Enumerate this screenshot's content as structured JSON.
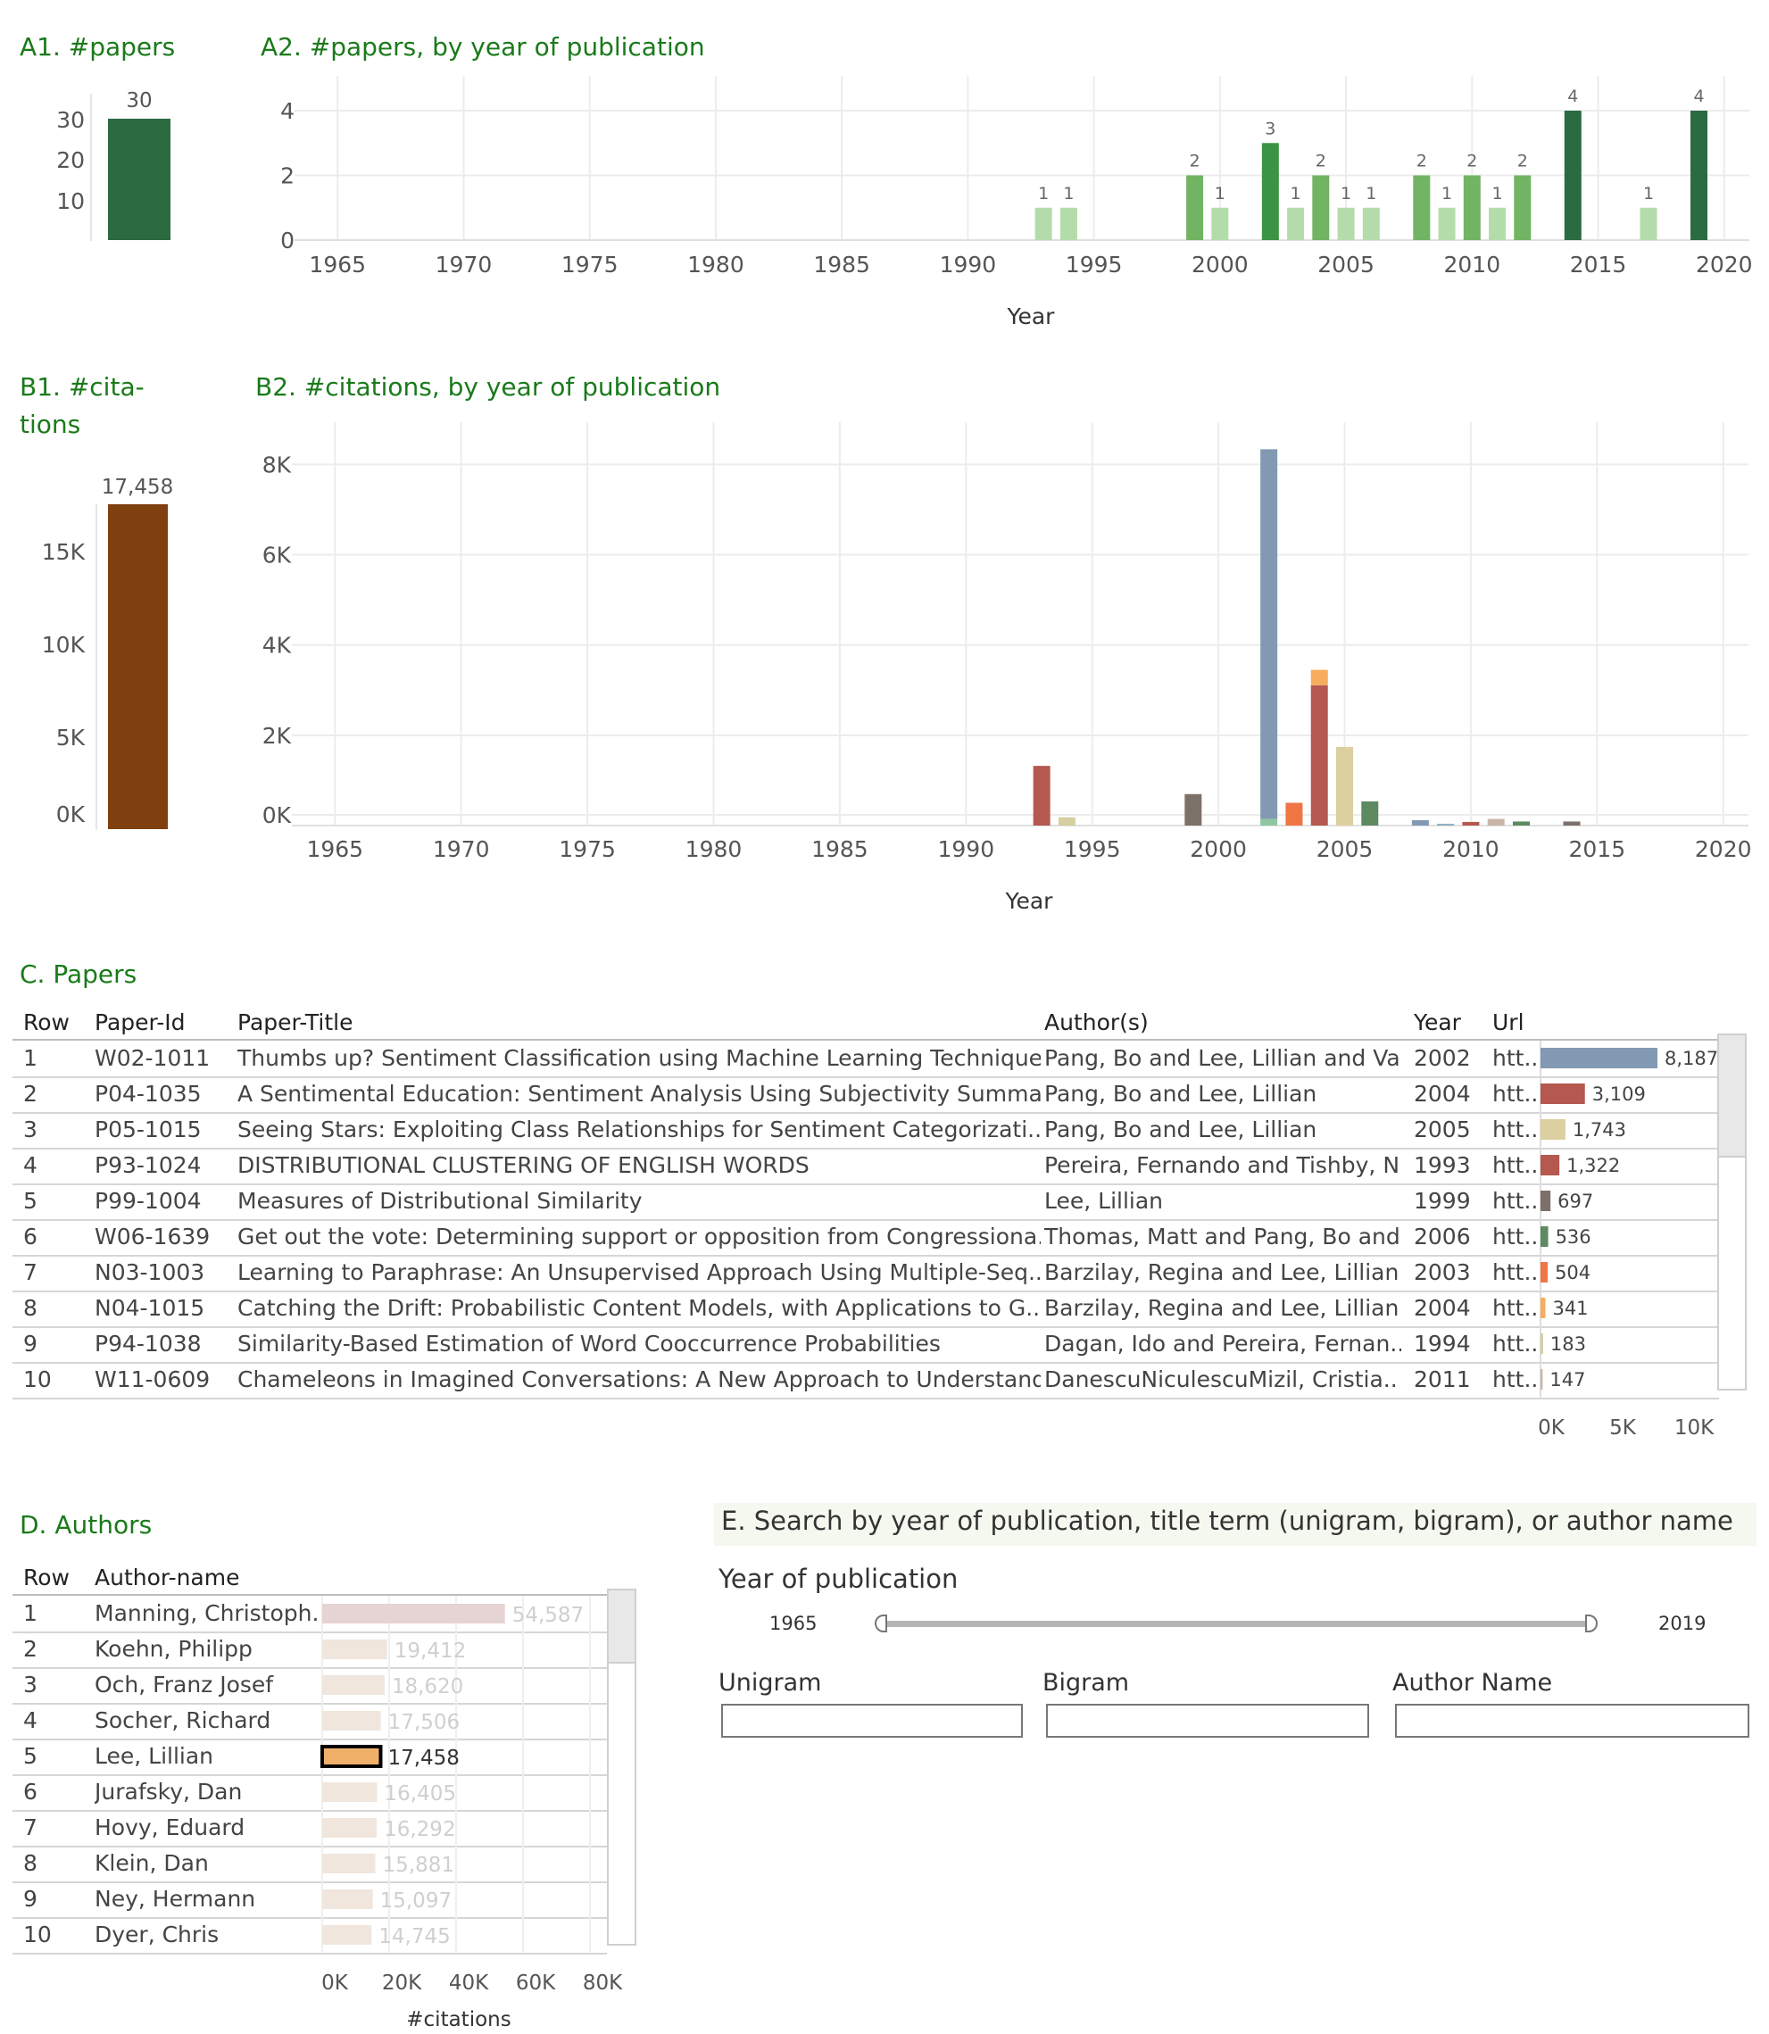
{
  "panels": {
    "a1_title": "A1. #papers",
    "a2_title": "A2. #papers, by year of publication",
    "b1_title_line1": "B1. #cita-",
    "b1_title_line2": "tions",
    "b2_title": "B2. #citations, by year of publication",
    "c_title": "C. Papers",
    "d_title": "D. Authors",
    "e_title": "E. Search by year of publication, title term (unigram, bigram), or  author name"
  },
  "colors": {
    "accent_title": "#1a7a1a",
    "a1_bar": "#2a6b41",
    "b1_bar": "#7f3f0f",
    "highlight_author": "#f0b06a"
  },
  "chart_data": [
    {
      "id": "A1",
      "type": "bar",
      "title": "A1. #papers",
      "categories": [
        ""
      ],
      "values": [
        30
      ],
      "data_labels": [
        "30"
      ],
      "y_ticks": [
        "10",
        "20",
        "30"
      ],
      "ylim": [
        0,
        36
      ],
      "grid": false
    },
    {
      "id": "A2",
      "type": "bar",
      "title": "A2. #papers, by year of publication",
      "xlabel": "Year",
      "x_ticks": [
        "1965",
        "1970",
        "1975",
        "1980",
        "1985",
        "1990",
        "1995",
        "2000",
        "2005",
        "2010",
        "2015",
        "2020"
      ],
      "x_tick_values": [
        1965,
        1970,
        1975,
        1980,
        1985,
        1990,
        1995,
        2000,
        2005,
        2010,
        2015,
        2020
      ],
      "y_ticks": [
        "0",
        "2",
        "4"
      ],
      "xlim": [
        1964,
        2021
      ],
      "ylim": [
        0,
        4.8
      ],
      "grid": true,
      "x": [
        1993,
        1994,
        1999,
        2000,
        2002,
        2003,
        2004,
        2005,
        2006,
        2008,
        2009,
        2010,
        2011,
        2012,
        2014,
        2017,
        2019
      ],
      "values": [
        1,
        1,
        2,
        1,
        3,
        1,
        2,
        1,
        1,
        2,
        1,
        2,
        1,
        2,
        4,
        1,
        4
      ]
    },
    {
      "id": "B1",
      "type": "bar",
      "title": "B1. #citations",
      "categories": [
        ""
      ],
      "values": [
        17458
      ],
      "data_labels": [
        "17,458"
      ],
      "y_ticks": [
        "0K",
        "5K",
        "10K",
        "15K"
      ],
      "y_tick_values": [
        0,
        5000,
        10000,
        15000
      ],
      "ylim": [
        0,
        19000
      ],
      "grid": false
    },
    {
      "id": "B2",
      "type": "bar",
      "title": "B2. #citations, by year of publication",
      "xlabel": "Year",
      "x_ticks": [
        "1965",
        "1970",
        "1975",
        "1980",
        "1985",
        "1990",
        "1995",
        "2000",
        "2005",
        "2010",
        "2015",
        "2020"
      ],
      "x_tick_values": [
        1965,
        1970,
        1975,
        1980,
        1985,
        1990,
        1995,
        2000,
        2005,
        2010,
        2015,
        2020
      ],
      "y_ticks": [
        "0K",
        "2K",
        "4K",
        "6K",
        "8K"
      ],
      "y_tick_values": [
        0,
        2000,
        4000,
        6000,
        8000
      ],
      "xlim": [
        1964,
        2021
      ],
      "ylim": [
        0,
        8700
      ],
      "grid": true,
      "stacked": true,
      "segments": [
        {
          "x": 1993,
          "value": 1322,
          "color": "#b5584f"
        },
        {
          "x": 1994,
          "value": 183,
          "color": "#d6cfa0"
        },
        {
          "x": 1999,
          "value": 697,
          "color": "#7d7068"
        },
        {
          "x": 2002,
          "value": 150,
          "color": "#8ec7a0"
        },
        {
          "x": 2002,
          "value": 8187,
          "color": "#8199b2"
        },
        {
          "x": 2003,
          "value": 504,
          "color": "#f07545"
        },
        {
          "x": 2004,
          "value": 3109,
          "color": "#b5584f"
        },
        {
          "x": 2004,
          "value": 341,
          "color": "#f6ad5e"
        },
        {
          "x": 2005,
          "value": 1743,
          "color": "#dccfa0"
        },
        {
          "x": 2006,
          "value": 536,
          "color": "#5e8a62"
        },
        {
          "x": 2008,
          "value": 120,
          "color": "#8199b2"
        },
        {
          "x": 2009,
          "value": 40,
          "color": "#8fb2c4"
        },
        {
          "x": 2010,
          "value": 80,
          "color": "#b5584f"
        },
        {
          "x": 2011,
          "value": 147,
          "color": "#c9b5a8"
        },
        {
          "x": 2012,
          "value": 90,
          "color": "#5e8a62"
        },
        {
          "x": 2014,
          "value": 90,
          "color": "#7d7068"
        }
      ]
    },
    {
      "id": "C-bars",
      "type": "bar",
      "xlabel": "#citations",
      "x_ticks": [
        "0K",
        "5K",
        "10K"
      ],
      "x_tick_values": [
        0,
        5000,
        10000
      ],
      "xlim": [
        0,
        11000
      ],
      "values": [
        8187,
        3109,
        1743,
        1322,
        697,
        536,
        504,
        341,
        183,
        147
      ],
      "data_labels": [
        "8,187",
        "3,109",
        "1,743",
        "1,322",
        "697",
        "536",
        "504",
        "341",
        "183",
        "147"
      ],
      "colors": [
        "#8199b2",
        "#b5584f",
        "#dccfa0",
        "#b5584f",
        "#7d7068",
        "#5e8a62",
        "#f07545",
        "#f6ad5e",
        "#d6cfa0",
        "#c9b5a8"
      ]
    },
    {
      "id": "D-bars",
      "type": "bar",
      "xlabel": "#citations",
      "x_ticks": [
        "0K",
        "20K",
        "40K",
        "60K",
        "80K"
      ],
      "x_tick_values": [
        0,
        20000,
        40000,
        60000,
        80000
      ],
      "xlim": [
        0,
        83000
      ],
      "values": [
        54587,
        19412,
        18620,
        17506,
        17458,
        16405,
        16292,
        15881,
        15097,
        14745
      ],
      "data_labels": [
        "54,587",
        "19,412",
        "18,620",
        "17,506",
        "17,458",
        "16,405",
        "16,292",
        "15,881",
        "15,097",
        "14,745"
      ],
      "highlight_index": 4
    }
  ],
  "papers_table": {
    "headers": {
      "row": "Row",
      "paper_id": "Paper-Id",
      "title": "Paper-Title",
      "authors": "Author(s)",
      "year": "Year",
      "url": "Url"
    },
    "rows": [
      {
        "row": "1",
        "paper_id": "W02-1011",
        "title": "Thumbs up? Sentiment Classification using Machine Learning Techniques",
        "authors": "Pang, Bo and Lee, Lillian and Vai..",
        "year": "2002",
        "url": "htt.."
      },
      {
        "row": "2",
        "paper_id": "P04-1035",
        "title": "A Sentimental Education: Sentiment Analysis Using Subjectivity Summa..",
        "authors": "Pang, Bo and Lee, Lillian",
        "year": "2004",
        "url": "htt.."
      },
      {
        "row": "3",
        "paper_id": "P05-1015",
        "title": "Seeing Stars: Exploiting Class Relationships for Sentiment Categorizati..",
        "authors": "Pang, Bo and Lee, Lillian",
        "year": "2005",
        "url": "htt.."
      },
      {
        "row": "4",
        "paper_id": "P93-1024",
        "title": "DISTRIBUTIONAL CLUSTERING OF ENGLISH WORDS",
        "authors": "Pereira, Fernando and Tishby, N..",
        "year": "1993",
        "url": "htt.."
      },
      {
        "row": "5",
        "paper_id": "P99-1004",
        "title": "Measures of Distributional Similarity",
        "authors": "Lee, Lillian",
        "year": "1999",
        "url": "htt.."
      },
      {
        "row": "6",
        "paper_id": "W06-1639",
        "title": "Get out the vote: Determining support or opposition from Congressiona..",
        "authors": "Thomas, Matt and Pang, Bo and..",
        "year": "2006",
        "url": "htt.."
      },
      {
        "row": "7",
        "paper_id": "N03-1003",
        "title": "Learning to Paraphrase: An Unsupervised Approach Using Multiple-Seq..",
        "authors": "Barzilay, Regina and Lee, Lillian",
        "year": "2003",
        "url": "htt.."
      },
      {
        "row": "8",
        "paper_id": "N04-1015",
        "title": "Catching the Drift: Probabilistic Content Models, with Applications to G..",
        "authors": "Barzilay, Regina and Lee, Lillian",
        "year": "2004",
        "url": "htt.."
      },
      {
        "row": "9",
        "paper_id": "P94-1038",
        "title": "Similarity-Based Estimation of Word Cooccurrence Probabilities",
        "authors": "Dagan, Ido and Pereira, Fernan..",
        "year": "1994",
        "url": "htt.."
      },
      {
        "row": "10",
        "paper_id": "W11-0609",
        "title": "Chameleons in Imagined Conversations: A New Approach to Understand..",
        "authors": "DanescuNiculescuMizil, Cristia..",
        "year": "2011",
        "url": "htt.."
      }
    ]
  },
  "authors_table": {
    "headers": {
      "row": "Row",
      "name": "Author-name"
    },
    "rows": [
      {
        "row": "1",
        "name": "Manning, Christoph.."
      },
      {
        "row": "2",
        "name": "Koehn, Philipp"
      },
      {
        "row": "3",
        "name": "Och, Franz Josef"
      },
      {
        "row": "4",
        "name": "Socher, Richard"
      },
      {
        "row": "5",
        "name": "Lee, Lillian"
      },
      {
        "row": "6",
        "name": "Jurafsky, Dan"
      },
      {
        "row": "7",
        "name": "Hovy, Eduard"
      },
      {
        "row": "8",
        "name": "Klein, Dan"
      },
      {
        "row": "9",
        "name": "Ney, Hermann"
      },
      {
        "row": "10",
        "name": "Dyer, Chris"
      }
    ]
  },
  "search": {
    "year_label": "Year of publication",
    "year_min": "1965",
    "year_max": "2019",
    "unigram_label": "Unigram",
    "bigram_label": "Bigram",
    "author_label": "Author Name",
    "unigram_value": "",
    "bigram_value": "",
    "author_value": ""
  }
}
